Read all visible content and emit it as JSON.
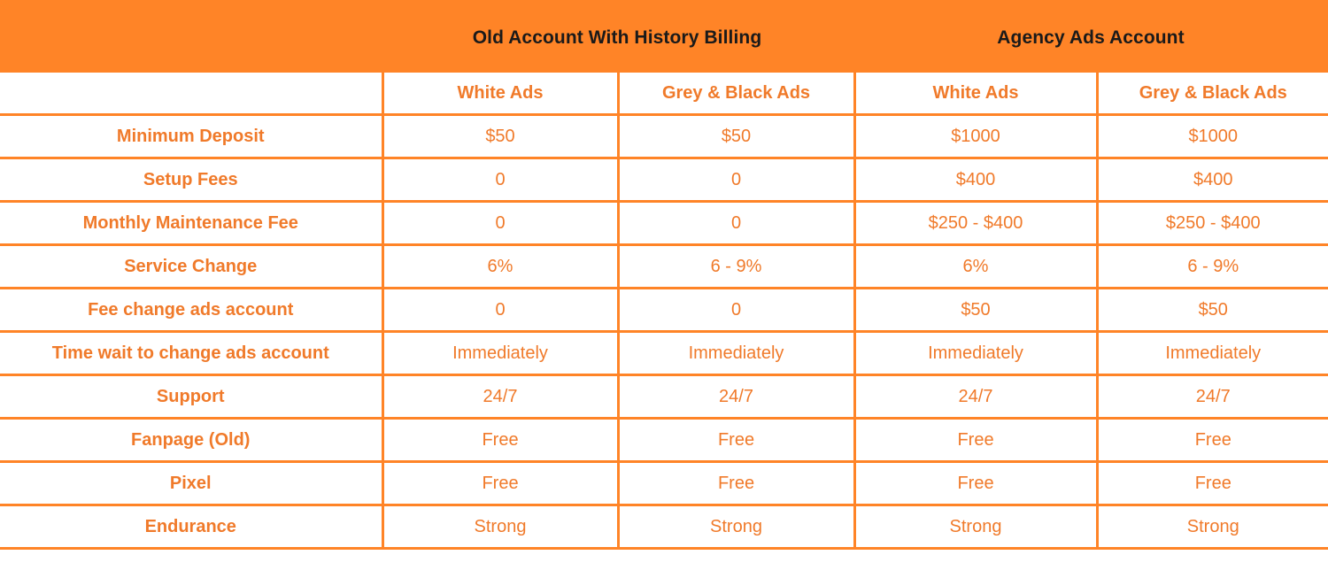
{
  "header": {
    "groups": [
      {
        "title": "Old Account With History Billing"
      },
      {
        "title": "Agency Ads Account"
      }
    ],
    "subheaders": [
      "",
      "White Ads",
      "Grey & Black Ads",
      "White Ads",
      "Grey & Black Ads"
    ]
  },
  "rows": [
    {
      "label": "Minimum Deposit",
      "values": [
        "$50",
        "$50",
        "$1000",
        "$1000"
      ]
    },
    {
      "label": "Setup Fees",
      "values": [
        "0",
        "0",
        "$400",
        "$400"
      ]
    },
    {
      "label": "Monthly Maintenance Fee",
      "values": [
        "0",
        "0",
        "$250 - $400",
        "$250 - $400"
      ]
    },
    {
      "label": "Service Change",
      "values": [
        "6%",
        "6 - 9%",
        "6%",
        "6 - 9%"
      ]
    },
    {
      "label": "Fee change ads account",
      "values": [
        "0",
        "0",
        "$50",
        "$50"
      ]
    },
    {
      "label": "Time wait to change ads account",
      "values": [
        "Immediately",
        "Immediately",
        "Immediately",
        "Immediately"
      ]
    },
    {
      "label": "Support",
      "values": [
        "24/7",
        "24/7",
        "24/7",
        "24/7"
      ]
    },
    {
      "label": "Fanpage (Old)",
      "values": [
        "Free",
        "Free",
        "Free",
        "Free"
      ]
    },
    {
      "label": "Pixel",
      "values": [
        "Free",
        "Free",
        "Free",
        "Free"
      ]
    },
    {
      "label": "Endurance",
      "values": [
        "Strong",
        "Strong",
        "Strong",
        "Strong"
      ]
    }
  ],
  "colors": {
    "accent": "#ff8427",
    "text_accent": "#f07a2a",
    "header_text": "#1a1a1a"
  }
}
